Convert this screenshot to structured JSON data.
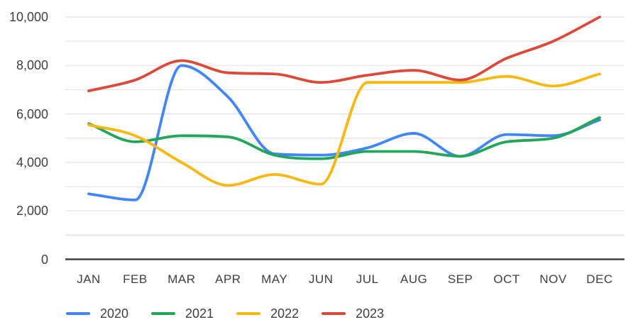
{
  "chart_data": {
    "type": "line",
    "title": "",
    "smooth": true,
    "categories": [
      "JAN",
      "FEB",
      "MAR",
      "APR",
      "MAY",
      "JUN",
      "JUL",
      "AUG",
      "SEP",
      "OCT",
      "NOV",
      "DEC"
    ],
    "series": [
      {
        "name": "2020",
        "color": "#4285f4",
        "values": [
          2700,
          2450,
          8000,
          6700,
          4350,
          4300,
          4600,
          5200,
          4250,
          5150,
          5100,
          5750
        ]
      },
      {
        "name": "2021",
        "color": "#23a65a",
        "values": [
          5600,
          4850,
          5100,
          5050,
          4300,
          4150,
          4450,
          4450,
          4250,
          4850,
          5000,
          5850
        ]
      },
      {
        "name": "2022",
        "color": "#f8b711",
        "values": [
          5550,
          5100,
          4000,
          3050,
          3500,
          3100,
          7300,
          7300,
          7300,
          7550,
          7150,
          7650
        ]
      },
      {
        "name": "2023",
        "color": "#db4a39",
        "values": [
          6950,
          7400,
          8200,
          7700,
          7650,
          7300,
          7600,
          7800,
          7400,
          8300,
          9000,
          10000
        ]
      }
    ],
    "xlabel": "",
    "ylabel": "",
    "y_axis": {
      "min": 0,
      "max": 10000,
      "gridline_step": 1000,
      "label_step": 2000,
      "tick_labels": [
        "0",
        "2,000",
        "4,000",
        "6,000",
        "8,000",
        "10,000"
      ]
    },
    "grid": true,
    "legend_position": "bottom"
  },
  "style": {
    "gridline_color": "#e2e2e2",
    "baseline_color": "#424242",
    "label_color": "#3c4043",
    "background": "#ffffff"
  }
}
